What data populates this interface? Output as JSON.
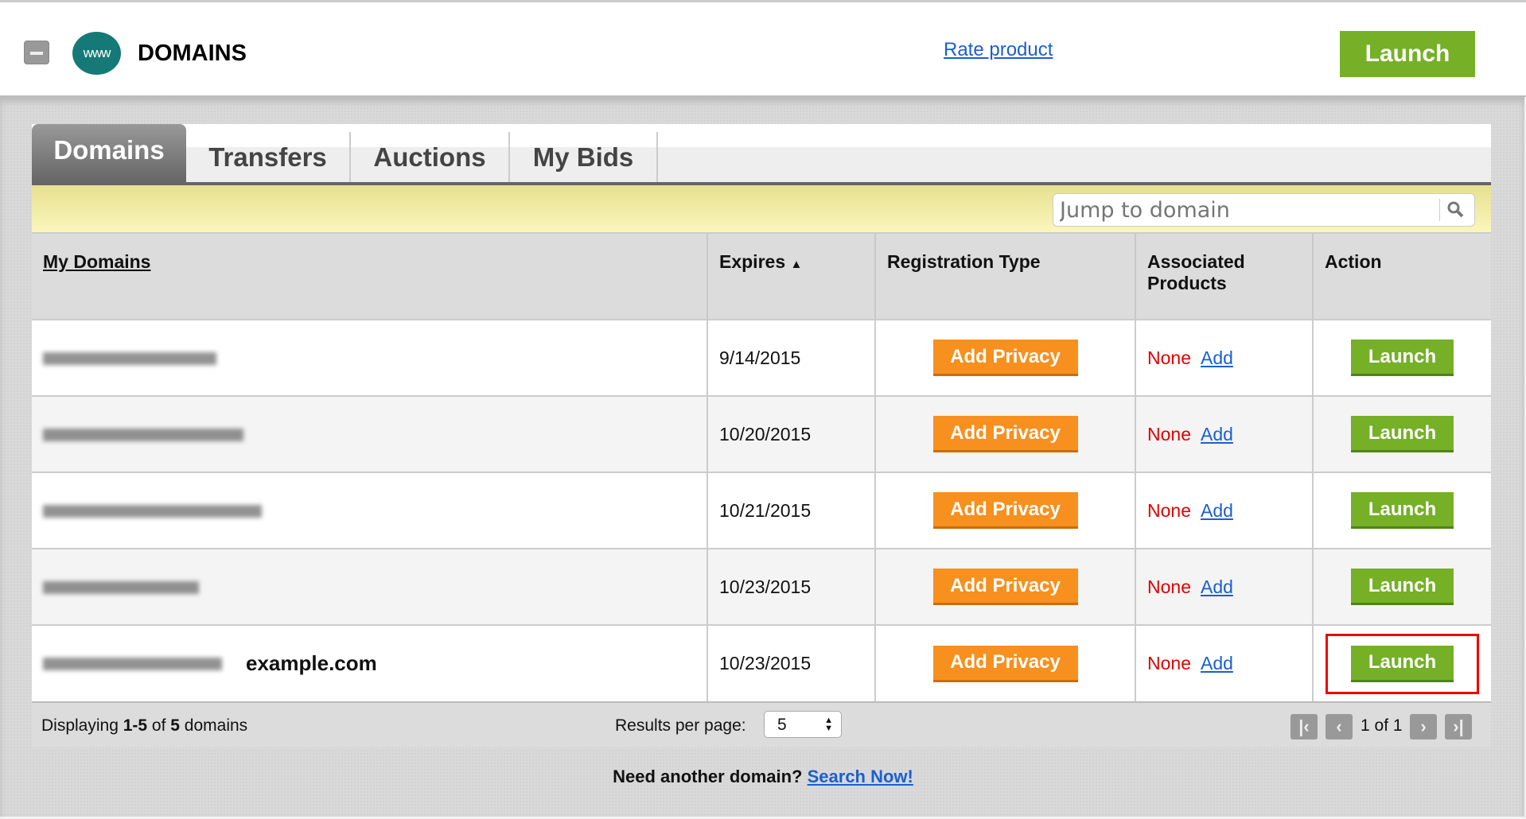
{
  "header": {
    "title": "DOMAINS",
    "logo_text": "www",
    "rate_link": "Rate product",
    "launch": "Launch"
  },
  "tabs": [
    {
      "label": "Domains",
      "active": true
    },
    {
      "label": "Transfers"
    },
    {
      "label": "Auctions"
    },
    {
      "label": "My Bids"
    }
  ],
  "search": {
    "placeholder": "Jump to domain"
  },
  "table": {
    "columns": [
      "My Domains",
      "Expires",
      "Registration Type",
      "Associated Products",
      "Action"
    ],
    "sort_indicator": "▲",
    "rows": [
      {
        "extra": "",
        "expires": "9/14/2015",
        "reg": "Add Privacy",
        "none": "None",
        "add": "Add",
        "action": "Launch"
      },
      {
        "extra": "",
        "expires": "10/20/2015",
        "reg": "Add Privacy",
        "none": "None",
        "add": "Add",
        "action": "Launch"
      },
      {
        "extra": "",
        "expires": "10/21/2015",
        "reg": "Add Privacy",
        "none": "None",
        "add": "Add",
        "action": "Launch"
      },
      {
        "extra": "",
        "expires": "10/23/2015",
        "reg": "Add Privacy",
        "none": "None",
        "add": "Add",
        "action": "Launch"
      },
      {
        "extra": "example.com",
        "expires": "10/23/2015",
        "reg": "Add Privacy",
        "none": "None",
        "add": "Add",
        "action": "Launch",
        "highlighted": true
      }
    ]
  },
  "footer": {
    "displaying_prefix": "Displaying ",
    "range": "1-5",
    "of": " of ",
    "total": "5",
    "suffix": " domains",
    "results_label": "Results per page:",
    "per_page": "5",
    "page_info": "1 of 1"
  },
  "bottom": {
    "text": "Need another domain? ",
    "link": "Search Now!"
  },
  "colors": {
    "launch": "#75b027",
    "privacy": "#f7901e",
    "none": "#e00000",
    "link": "#1a5fd0",
    "highlight": "#e00000"
  }
}
